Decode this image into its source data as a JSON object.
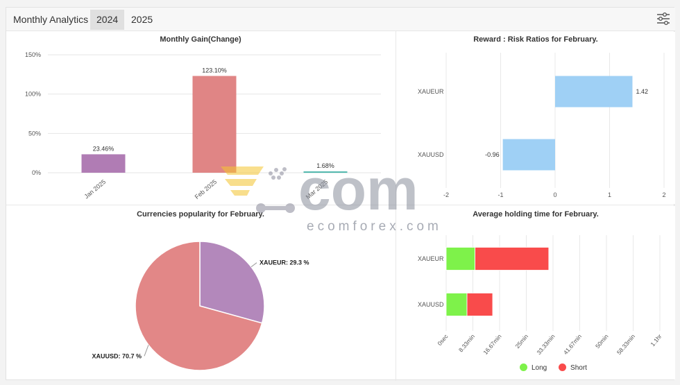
{
  "header": {
    "title": "Monthly Analytics",
    "tabs": [
      {
        "label": "2024",
        "active": true
      },
      {
        "label": "2025",
        "active": false
      }
    ]
  },
  "watermark": {
    "text": "ecomforex.com",
    "logo_word": "com"
  },
  "chart_data": [
    {
      "type": "bar",
      "title": "Monthly Gain(Change)",
      "categories": [
        "Jan 2025",
        "Feb 2025",
        "Mar 2025"
      ],
      "values": [
        23.46,
        123.1,
        1.68
      ],
      "value_labels": [
        "23.46%",
        "123.10%",
        "1.68%"
      ],
      "colors": [
        "#b07cb4",
        "#e08585",
        "#4db6ac"
      ],
      "yticks": [
        "0%",
        "50%",
        "100%",
        "150%"
      ],
      "ylim": [
        0,
        150
      ],
      "grid": true
    },
    {
      "type": "bar",
      "orientation": "horizontal",
      "title": "Reward : Risk Ratios for February.",
      "categories": [
        "XAUEUR",
        "XAUUSD"
      ],
      "values": [
        1.42,
        -0.96
      ],
      "value_labels": [
        "1.42",
        "-0.96"
      ],
      "color": "#9fd0f5",
      "xticks": [
        "-2",
        "-1",
        "0",
        "1",
        "2"
      ],
      "xlim": [
        -2,
        2
      ],
      "grid": true
    },
    {
      "type": "pie",
      "title": "Currencies popularity for February.",
      "labels": [
        "XAUEUR",
        "XAUUSD"
      ],
      "values": [
        29.3,
        70.7
      ],
      "value_labels": [
        "XAUEUR: 29.3 %",
        "XAUUSD: 70.7 %"
      ],
      "colors": [
        "#b388bb",
        "#e28787"
      ]
    },
    {
      "type": "bar",
      "orientation": "horizontal",
      "stacked": true,
      "title": "Average holding time for February.",
      "categories": [
        "XAUEUR",
        "XAUUSD"
      ],
      "series": [
        {
          "name": "Long",
          "values": [
            9,
            6.5
          ],
          "color": "#7ef24a"
        },
        {
          "name": "Short",
          "values": [
            23,
            8
          ],
          "color": "#f94b4b"
        }
      ],
      "unit": "min",
      "xticks": [
        "0sec",
        "8.33min",
        "16.67min",
        "25min",
        "33.33min",
        "41.67min",
        "50min",
        "58.33min",
        "1.1hr"
      ],
      "xlim": [
        0,
        66.67
      ],
      "legend": "bottom-center",
      "grid": true
    }
  ]
}
